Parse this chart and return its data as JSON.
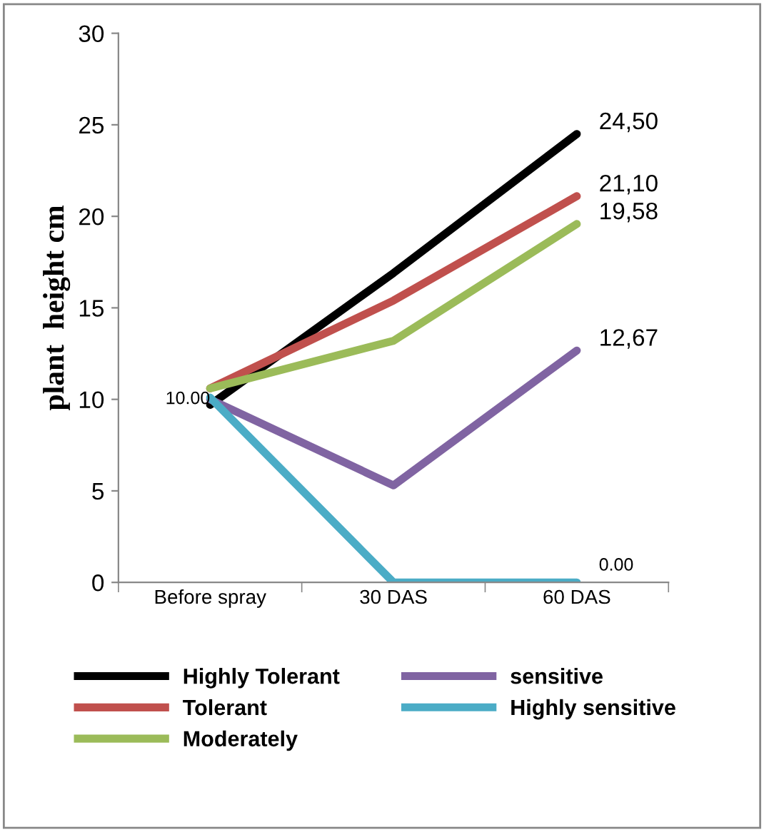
{
  "chart_data": {
    "type": "line",
    "ylabel": "plant  height cm",
    "categories": [
      "Before spray",
      "30 DAS",
      "60 DAS"
    ],
    "series": [
      {
        "name": "Highly Tolerant",
        "color": "#000000",
        "values": [
          9.7,
          16.9,
          24.5
        ],
        "value_labels": [
          null,
          null,
          "24,50"
        ]
      },
      {
        "name": "Tolerant",
        "color": "#c0504d",
        "values": [
          10.6,
          15.4,
          21.1
        ],
        "value_labels": [
          null,
          null,
          "21,10"
        ]
      },
      {
        "name": "Moderately",
        "color": "#9bbb59",
        "values": [
          10.6,
          13.2,
          19.58
        ],
        "value_labels": [
          null,
          null,
          "19,58"
        ]
      },
      {
        "name": "sensitive",
        "color": "#8064a2",
        "values": [
          10.0,
          5.3,
          12.67
        ],
        "value_labels": [
          "10.00",
          null,
          "12,67"
        ]
      },
      {
        "name": "Highly sensitive",
        "color": "#4bacc6",
        "values": [
          10.1,
          0,
          0
        ],
        "value_labels": [
          null,
          null,
          "0.00"
        ]
      }
    ],
    "ylim": [
      0,
      30
    ],
    "yticks": [
      0,
      5,
      10,
      15,
      20,
      25,
      30
    ],
    "grid": false,
    "legend": "bottom",
    "marker": "none",
    "line_style": "solid"
  }
}
